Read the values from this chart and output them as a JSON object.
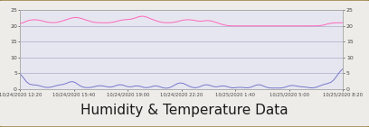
{
  "title": "Humidity & Temperature Data",
  "x_labels": [
    "10/24/2020 12:20",
    "10/24/2020 15:40",
    "10/24/2020 19:00",
    "10/24/2020 22:20",
    "10/25/2020 1:40",
    "10/25/2020 5:00",
    "10/25/2020 8:20"
  ],
  "ylim_left": [
    0,
    25
  ],
  "ylim_right": [
    0,
    25
  ],
  "yticks": [
    0,
    5,
    10,
    15,
    20,
    25
  ],
  "humidity_color": "#7777cc",
  "temperature_color": "#ff66bb",
  "background_color": "#eeece8",
  "plot_bg_color": "#e6e6f0",
  "border_color": "#9a7c3a",
  "grid_color": "#aaaacc",
  "title_fontsize": 11,
  "humidity_data": [
    8,
    2,
    1,
    1,
    1,
    2,
    1,
    1,
    0,
    0,
    1,
    0,
    2,
    1,
    2,
    0,
    3,
    4,
    2,
    1,
    0,
    0,
    1,
    0,
    0,
    2,
    1,
    1,
    1,
    0,
    0,
    1,
    2,
    2,
    1,
    0,
    0,
    1,
    2,
    1,
    0,
    0,
    0,
    1,
    2,
    1,
    0,
    0,
    0,
    0,
    1,
    2,
    3,
    2,
    1,
    1,
    0,
    0,
    0,
    1,
    2,
    2,
    1,
    0,
    0,
    1,
    2,
    1,
    0,
    0,
    0,
    1,
    1,
    0,
    0,
    0,
    1,
    2,
    2,
    1,
    0,
    0,
    0,
    1,
    0,
    0,
    0,
    1,
    2,
    1,
    1,
    0,
    1,
    1,
    0,
    0,
    0,
    1,
    1,
    2,
    2,
    1,
    2,
    4,
    6,
    8
  ],
  "temperature_data": [
    20,
    21,
    22,
    22,
    22,
    22,
    22,
    22,
    21,
    21,
    21,
    21,
    21,
    21,
    22,
    22,
    22,
    23,
    23,
    23,
    22,
    22,
    22,
    21,
    21,
    21,
    21,
    21,
    21,
    21,
    21,
    21,
    22,
    22,
    22,
    22,
    22,
    22,
    23,
    23,
    24,
    23,
    22,
    22,
    22,
    21,
    21,
    21,
    21,
    21,
    21,
    21,
    22,
    22,
    22,
    22,
    22,
    22,
    21,
    21,
    22,
    22,
    22,
    21,
    21,
    21,
    20,
    20,
    20,
    20,
    20,
    20,
    20,
    20,
    20,
    20,
    20,
    20,
    20,
    20,
    20,
    20,
    20,
    20,
    20,
    20,
    20,
    20,
    20,
    20,
    20,
    20,
    20,
    20,
    20,
    20,
    20,
    20,
    20,
    20,
    21,
    21,
    21,
    21,
    21,
    21
  ]
}
